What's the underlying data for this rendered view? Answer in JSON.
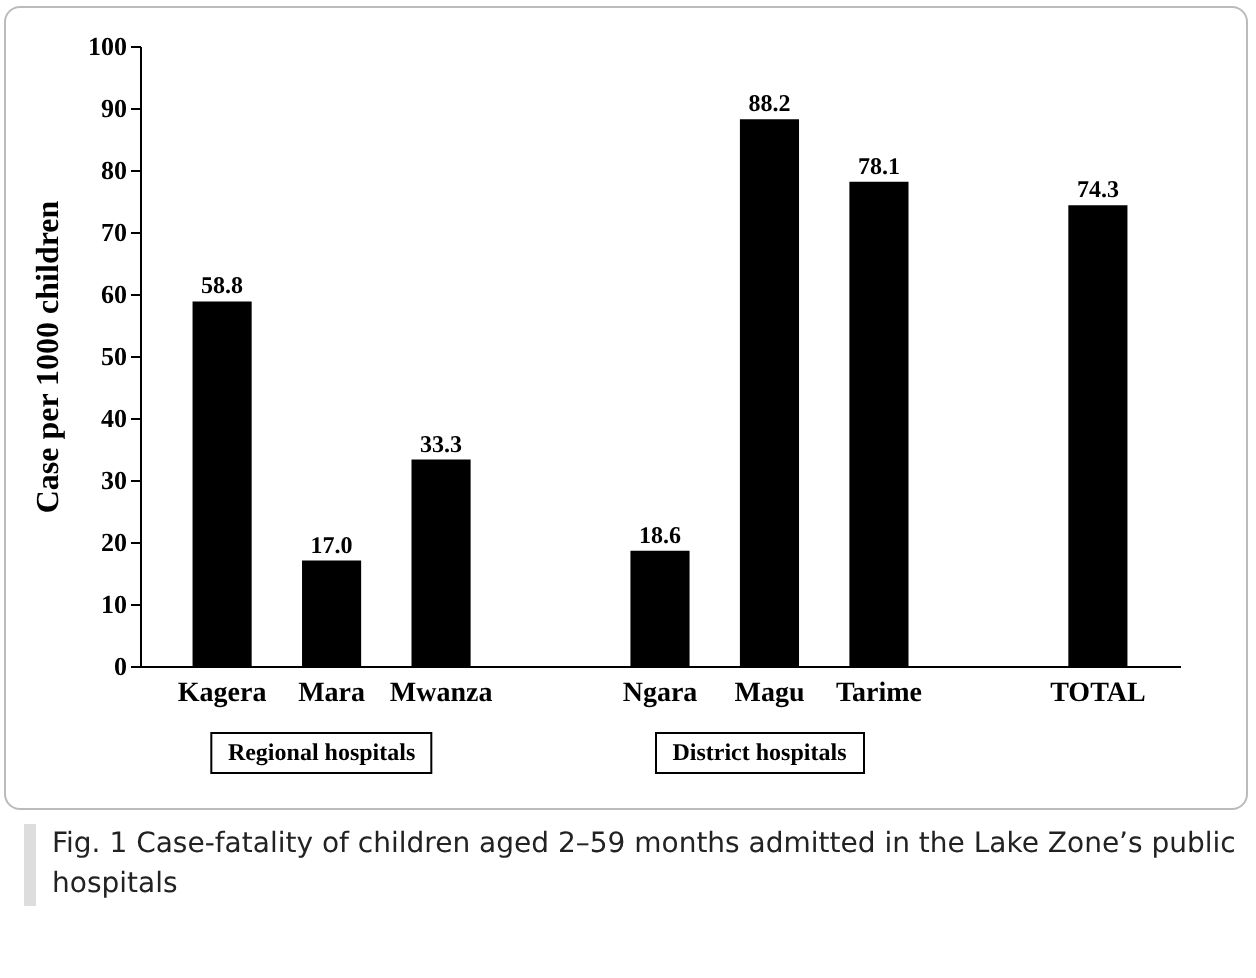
{
  "chart_data": {
    "type": "bar",
    "ylabel": "Case per 1000 children",
    "categories": [
      "Kagera",
      "Mara",
      "Mwanza",
      null,
      "Ngara",
      "Magu",
      "Tarime",
      null,
      "TOTAL"
    ],
    "values": [
      58.8,
      17.0,
      33.3,
      null,
      18.6,
      88.2,
      78.1,
      null,
      74.3
    ],
    "value_labels": [
      "58.8",
      "17.0",
      "33.3",
      null,
      "18.6",
      "88.2",
      "78.1",
      null,
      "74.3"
    ],
    "color": "#000000",
    "ylim": [
      0,
      100
    ],
    "yticks": [
      0,
      10,
      20,
      30,
      40,
      50,
      60,
      70,
      80,
      90,
      100
    ],
    "grid": false,
    "annotations": [
      "Regional hospitals",
      "District hospitals",
      "Fig. 1 Case-fatality of children aged 2–59 months admitted in the Lake Zone’s public hospitals"
    ]
  }
}
